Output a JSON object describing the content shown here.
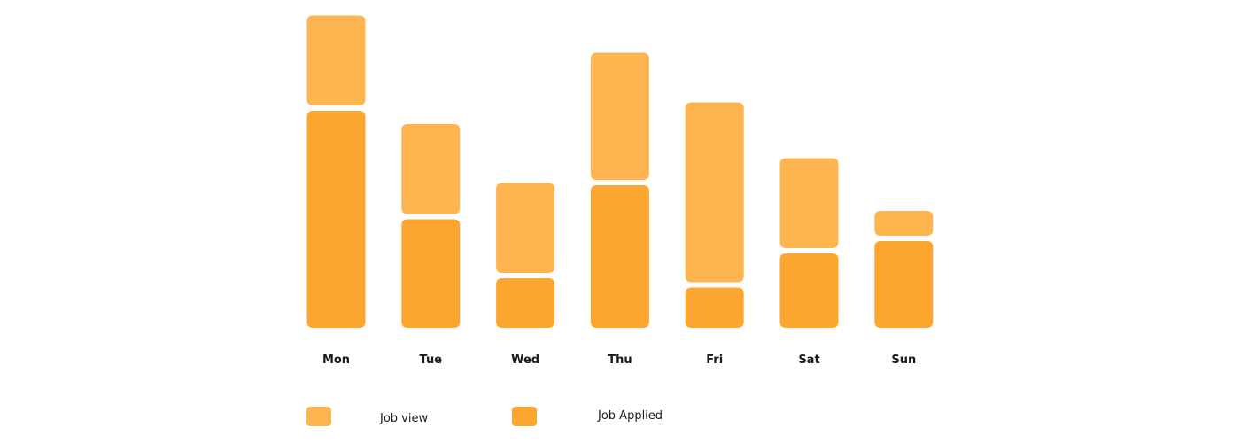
{
  "chart_data": {
    "type": "bar",
    "stacked": true,
    "categories": [
      "Mon",
      "Tue",
      "Wed",
      "Thu",
      "Fri",
      "Sat",
      "Sun"
    ],
    "series": [
      {
        "name": "Job Applied",
        "values": [
          7.0,
          3.5,
          1.6,
          4.6,
          1.3,
          2.4,
          2.8
        ],
        "color": "#FDA62F"
      },
      {
        "name": "Job view",
        "values": [
          2.9,
          2.9,
          2.9,
          4.1,
          5.8,
          2.9,
          0.8
        ],
        "color": "#FEB44F"
      }
    ],
    "title": "",
    "xlabel": "",
    "ylabel": "",
    "ylim": [
      0,
      10
    ],
    "grid": false,
    "legend_position": "bottom-left"
  },
  "legend": {
    "job_view_label": "Job view",
    "job_applied_label": "Job Applied"
  }
}
